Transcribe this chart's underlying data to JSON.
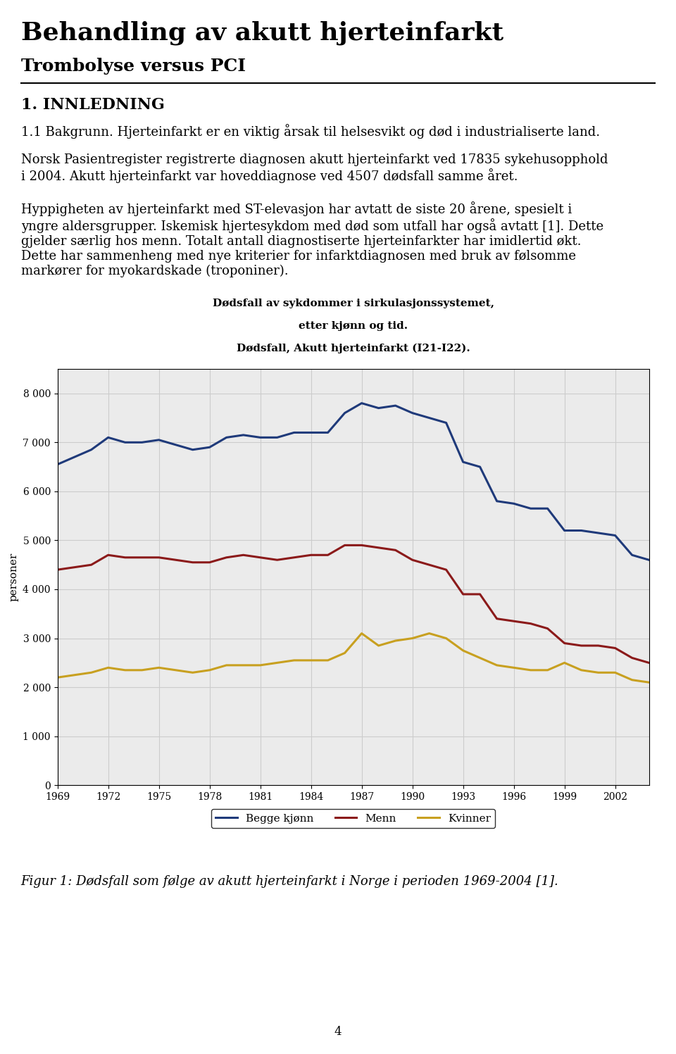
{
  "title_main": "Behandling av akutt hjerteinfarkt",
  "title_sub": "Trombolyse versus PCI",
  "section_title": "1. INNLEDNING",
  "section_subtitle": "1.1 Bakgrunn.",
  "body_text_1": "Hjerteinfarkt er en viktig årsak til helsesvikt og død i industrialiserte land.",
  "body_text_2a": "Norsk Pasientregister registrerte diagnosen akutt hjerteinfarkt ved 17835 sykehusopphold",
  "body_text_2b": "i 2004. Akutt hjerteinfarkt var hoveddiagnose ved 4507 dødsfall samme året.",
  "body_text_3a": "Hyppigheten av hjerteinfarkt med ST-elevasjon har avtatt de siste 20 årene, spesielt i",
  "body_text_3b": "yngre aldersgrupper. Iskemisk hjertesykdom med død som utfall har også avtatt [1]. Dette",
  "body_text_3c": "gjelder særlig hos menn. Totalt antall diagnostiserte hjerteinfarkter har imidlertid økt.",
  "body_text_3d": "Dette har sammenheng med nye kriterier for infarktdiagnosen med bruk av følsomme",
  "body_text_3e": "markører for myokardskade (troponiner).",
  "chart_title_line1": "Dødsfall av sykdommer i sirkulasjonssystemet,",
  "chart_title_line2": "etter kjønn og tid.",
  "chart_title_line3": "Dødsfall, Akutt hjerteinfarkt (I21-I22).",
  "years": [
    1969,
    1970,
    1971,
    1972,
    1973,
    1974,
    1975,
    1976,
    1977,
    1978,
    1979,
    1980,
    1981,
    1982,
    1983,
    1984,
    1985,
    1986,
    1987,
    1988,
    1989,
    1990,
    1991,
    1992,
    1993,
    1994,
    1995,
    1996,
    1997,
    1998,
    1999,
    2000,
    2001,
    2002,
    2003,
    2004
  ],
  "begge_kjonn": [
    6550,
    6700,
    6850,
    7100,
    7000,
    7000,
    7050,
    6950,
    6850,
    6900,
    7100,
    7150,
    7100,
    7100,
    7200,
    7200,
    7200,
    7600,
    7800,
    7700,
    7750,
    7600,
    7500,
    7400,
    6600,
    6500,
    5800,
    5750,
    5650,
    5650,
    5200,
    5200,
    5150,
    5100,
    4700,
    4600
  ],
  "menn": [
    4400,
    4450,
    4500,
    4700,
    4650,
    4650,
    4650,
    4600,
    4550,
    4550,
    4650,
    4700,
    4650,
    4600,
    4650,
    4700,
    4700,
    4900,
    4900,
    4850,
    4800,
    4600,
    4500,
    4400,
    3900,
    3900,
    3400,
    3350,
    3300,
    3200,
    2900,
    2850,
    2850,
    2800,
    2600,
    2500
  ],
  "kvinner": [
    2200,
    2250,
    2300,
    2400,
    2350,
    2350,
    2400,
    2350,
    2300,
    2350,
    2450,
    2450,
    2450,
    2500,
    2550,
    2550,
    2550,
    2700,
    3100,
    2850,
    2950,
    3000,
    3100,
    3000,
    2750,
    2600,
    2450,
    2400,
    2350,
    2350,
    2500,
    2350,
    2300,
    2300,
    2150,
    2100
  ],
  "begge_color": "#1f3a7a",
  "menn_color": "#8b1a1a",
  "kvinner_color": "#c8a020",
  "ylabel": "personer",
  "ylim": [
    0,
    8500
  ],
  "yticks": [
    0,
    1000,
    2000,
    3000,
    4000,
    5000,
    6000,
    7000,
    8000
  ],
  "ytick_labels": [
    "0",
    "1 000",
    "2 000",
    "3 000",
    "4 000",
    "5 000",
    "6 000",
    "7 000",
    "8 000"
  ],
  "xtick_years": [
    1969,
    1972,
    1975,
    1978,
    1981,
    1984,
    1987,
    1990,
    1993,
    1996,
    1999,
    2002
  ],
  "legend_labels": [
    "Begge kjønn",
    "Menn",
    "Kvinner"
  ],
  "fig_caption": "Figur 1: Dødsfall som følge av akutt hjerteinfarkt i Norge i perioden 1969-2004 [1].",
  "background_color": "#ffffff",
  "grid_color": "#cccccc",
  "chart_bg_color": "#ebebeb"
}
